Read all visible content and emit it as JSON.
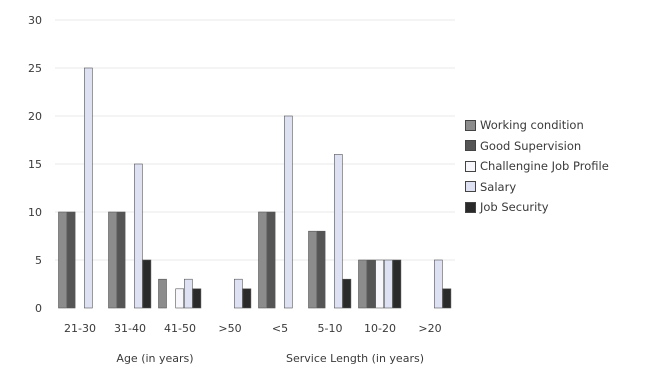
{
  "chart_data": {
    "type": "bar",
    "title": "",
    "ylabel": "",
    "ylim": [
      0,
      30
    ],
    "yticks": [
      0,
      5,
      10,
      15,
      20,
      25,
      30
    ],
    "grid": true,
    "legend_position": "right",
    "categories": [
      "21-30",
      "31-40",
      "41-50",
      ">50",
      "<5",
      "5-10",
      "10-20",
      ">20"
    ],
    "groups": [
      {
        "label": "Age (in years)",
        "categories": [
          "21-30",
          "31-40",
          "41-50",
          ">50"
        ]
      },
      {
        "label": "Service Length (in years)",
        "categories": [
          "<5",
          "5-10",
          "10-20",
          ">20"
        ]
      }
    ],
    "series": [
      {
        "name": "Working  condition",
        "color": "#8c8c8c",
        "values": [
          10,
          10,
          3,
          0,
          10,
          8,
          5,
          0
        ]
      },
      {
        "name": "Good Supervision",
        "color": "#555555",
        "values": [
          10,
          10,
          0,
          0,
          10,
          8,
          5,
          0
        ]
      },
      {
        "name": "Challengine Job Profile",
        "color": "#f7f7fb",
        "values": [
          0,
          0,
          2,
          0,
          0,
          0,
          5,
          0
        ]
      },
      {
        "name": "Salary",
        "color": "#dde1f2",
        "values": [
          25,
          15,
          3,
          3,
          20,
          16,
          5,
          5
        ]
      },
      {
        "name": "Job Security",
        "color": "#2a2a2a",
        "values": [
          0,
          5,
          2,
          2,
          0,
          3,
          5,
          2
        ]
      }
    ]
  }
}
